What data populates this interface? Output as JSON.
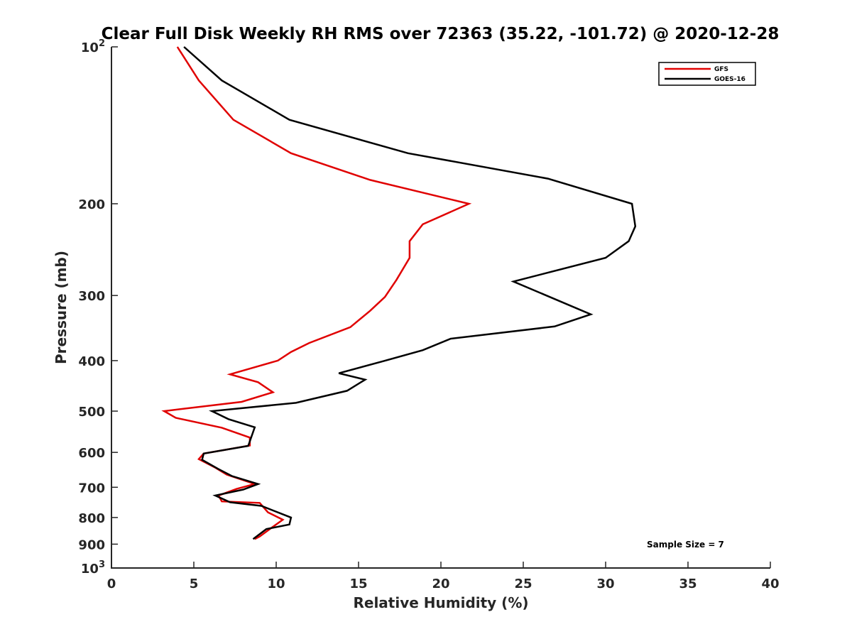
{
  "chart_data": {
    "type": "line",
    "title": "Clear Full Disk Weekly RH RMS over 72363 (35.22, -101.72) @ 2020-12-28",
    "xlabel": "Relative Humidity (%)",
    "ylabel": "Pressure (mb)",
    "xlim": [
      0,
      40
    ],
    "ylim": [
      100,
      1000
    ],
    "yscale": "log",
    "y_reversed": true,
    "grid": false,
    "x_ticks": [
      0,
      5,
      10,
      15,
      20,
      25,
      30,
      35,
      40
    ],
    "x_tick_labels": [
      "0",
      "5",
      "10",
      "15",
      "20",
      "25",
      "30",
      "35",
      "40"
    ],
    "y_ticks": [
      100,
      200,
      300,
      400,
      500,
      600,
      700,
      800,
      900,
      1000
    ],
    "y_tick_labels": [
      {
        "base": "10",
        "exp": "2"
      },
      {
        "base": "200",
        "exp": ""
      },
      {
        "base": "300",
        "exp": ""
      },
      {
        "base": "400",
        "exp": ""
      },
      {
        "base": "500",
        "exp": ""
      },
      {
        "base": "600",
        "exp": ""
      },
      {
        "base": "700",
        "exp": ""
      },
      {
        "base": "800",
        "exp": ""
      },
      {
        "base": "900",
        "exp": ""
      },
      {
        "base": "10",
        "exp": "3"
      }
    ],
    "legend": {
      "position": "top-right"
    },
    "annotation": "Sample Size = 7",
    "series": [
      {
        "name": "GFS",
        "color": "#e00000",
        "x": [
          4.0,
          5.3,
          7.4,
          10.9,
          15.7,
          21.7,
          18.9,
          18.1,
          18.1,
          17.3,
          16.6,
          15.7,
          14.5,
          12.0,
          10.9,
          10.1,
          7.2,
          8.9,
          9.8,
          7.9,
          3.2,
          3.9,
          6.7,
          8.4,
          8.4,
          5.6,
          5.3,
          6.3,
          7.0,
          8.7,
          7.6,
          6.5,
          6.7,
          9.0,
          9.5,
          10.4,
          9.7,
          9.0,
          8.7
        ],
        "y": [
          100,
          116,
          138,
          160,
          180,
          200,
          219,
          236,
          254,
          280,
          302,
          321,
          345,
          370,
          385,
          400,
          425,
          440,
          460,
          480,
          500,
          515,
          538,
          562,
          582,
          603,
          618,
          642,
          662,
          690,
          705,
          726,
          745,
          750,
          782,
          808,
          838,
          870,
          880
        ]
      },
      {
        "name": "GOES-16",
        "color": "#000000",
        "x": [
          4.4,
          6.7,
          10.8,
          18.0,
          26.5,
          31.6,
          31.8,
          31.4,
          30.0,
          24.4,
          26.4,
          29.1,
          26.9,
          20.6,
          18.9,
          16.5,
          13.8,
          15.4,
          14.3,
          11.2,
          6.1,
          7.1,
          8.7,
          8.3,
          5.6,
          5.5,
          6.5,
          7.3,
          8.9,
          8.0,
          6.3,
          7.2,
          9.1,
          10.9,
          10.8,
          9.4,
          8.6
        ],
        "y": [
          100,
          116,
          138,
          160,
          179,
          200,
          221,
          236,
          254,
          282,
          300,
          326,
          344,
          363,
          382,
          401,
          423,
          435,
          457,
          482,
          500,
          518,
          537,
          583,
          603,
          620,
          646,
          666,
          690,
          707,
          726,
          748,
          760,
          800,
          825,
          842,
          880
        ]
      }
    ]
  }
}
